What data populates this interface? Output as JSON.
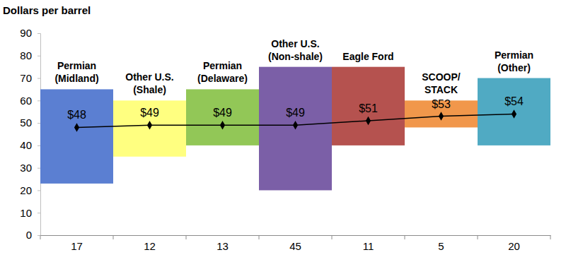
{
  "chart_data": {
    "type": "bar",
    "y_label": "Dollars per barrel",
    "categories": [
      "Permian\n(Midland)",
      "Other U.S.\n(Shale)",
      "Permian\n(Delaware)",
      "Other U.S.\n(Non-shale)",
      "Eagle Ford",
      "SCOOP/\nSTACK",
      "Permian\n(Other)"
    ],
    "counts": [
      17,
      12,
      13,
      45,
      11,
      5,
      20
    ],
    "low": [
      23,
      35,
      40,
      20,
      40,
      48,
      40
    ],
    "high": [
      65,
      60,
      65,
      75,
      75,
      60,
      70
    ],
    "colors": [
      "#5b7fd2",
      "#ffff80",
      "#92c757",
      "#7b5fa7",
      "#b5524f",
      "#f1974b",
      "#50aac3"
    ],
    "values": [
      48,
      49,
      49,
      49,
      51,
      53,
      54
    ],
    "value_labels": [
      "$48",
      "$49",
      "$49",
      "$49",
      "$51",
      "$53",
      "$54"
    ],
    "color": "#000000",
    "marker": "diamond",
    "data_labels": true,
    "grid": false,
    "ylim": [
      0,
      90
    ],
    "yticks": [
      0,
      10,
      20,
      30,
      40,
      50,
      60,
      70,
      80,
      90
    ]
  }
}
